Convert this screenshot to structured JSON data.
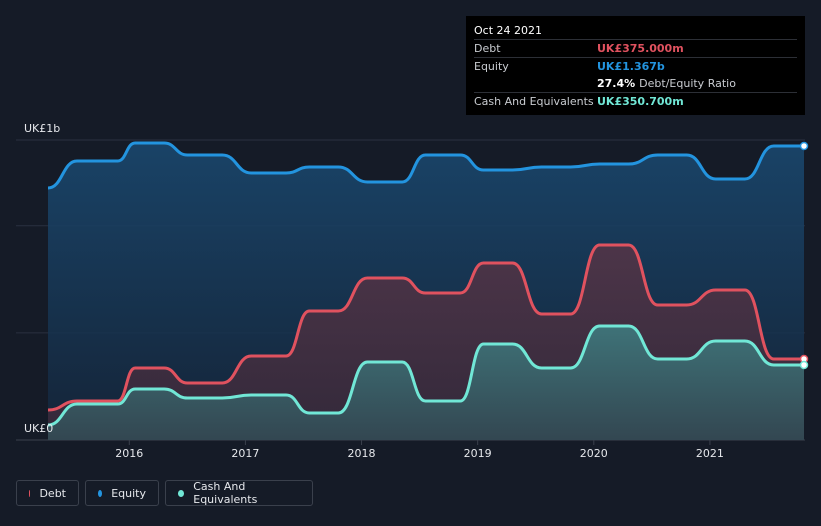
{
  "chart_data": {
    "type": "area",
    "x_years": [
      2015.3,
      2015.55,
      2015.7,
      2015.9,
      2016.05,
      2016.3,
      2016.5,
      2016.8,
      2017.05,
      2017.35,
      2017.55,
      2017.8,
      2018.05,
      2018.35,
      2018.55,
      2018.85,
      2019.05,
      2019.3,
      2019.55,
      2019.8,
      2020.05,
      2020.3,
      2020.55,
      2020.8,
      2021.05,
      2021.3,
      2021.55,
      2021.81
    ],
    "series": [
      {
        "name": "Debt",
        "color": "#e0525f",
        "values": [
          0.1,
          0.13,
          0.13,
          0.13,
          0.24,
          0.24,
          0.19,
          0.19,
          0.28,
          0.28,
          0.43,
          0.43,
          0.54,
          0.54,
          0.49,
          0.49,
          0.59,
          0.59,
          0.42,
          0.42,
          0.65,
          0.65,
          0.45,
          0.45,
          0.5,
          0.5,
          0.27,
          0.27
        ]
      },
      {
        "name": "Equity",
        "color": "#2394df",
        "values": [
          0.84,
          0.93,
          0.93,
          0.93,
          0.99,
          0.99,
          0.95,
          0.95,
          0.89,
          0.89,
          0.91,
          0.91,
          0.86,
          0.86,
          0.95,
          0.95,
          0.9,
          0.9,
          0.91,
          0.91,
          0.92,
          0.92,
          0.95,
          0.95,
          0.87,
          0.87,
          0.98,
          0.98
        ]
      },
      {
        "name": "Cash And Equivalents",
        "color": "#71e7d6",
        "values": [
          0.05,
          0.12,
          0.12,
          0.12,
          0.17,
          0.17,
          0.14,
          0.14,
          0.15,
          0.15,
          0.09,
          0.09,
          0.26,
          0.26,
          0.13,
          0.13,
          0.32,
          0.32,
          0.24,
          0.24,
          0.38,
          0.38,
          0.27,
          0.27,
          0.33,
          0.33,
          0.25,
          0.25
        ]
      }
    ],
    "xticks": [
      "2016",
      "2017",
      "2018",
      "2019",
      "2020",
      "2021"
    ],
    "xtick_years": [
      2016,
      2017,
      2018,
      2019,
      2020,
      2021
    ],
    "ytick_labels": [
      "UK£1b",
      "UK£0"
    ],
    "ylim": [
      0,
      1.0
    ],
    "xlim": [
      2015.3,
      2021.81
    ],
    "grid": true,
    "legend_position": "bottom-left"
  },
  "tooltip": {
    "date": "Oct 24 2021",
    "rows": [
      {
        "label": "Debt",
        "value": "UK£375.000m",
        "color": "#e0525f"
      },
      {
        "label": "Equity",
        "value": "UK£1.367b",
        "color": "#2394df"
      },
      {
        "label": "",
        "value": "27.4%",
        "suffix": "Debt/Equity Ratio",
        "color": "#ffffff"
      },
      {
        "label": "Cash And Equivalents",
        "value": "UK£350.700m",
        "color": "#71e7d6"
      }
    ]
  },
  "legend": [
    {
      "label": "Debt",
      "color": "#e0525f"
    },
    {
      "label": "Equity",
      "color": "#2394df"
    },
    {
      "label": "Cash And Equivalents",
      "color": "#71e7d6"
    }
  ]
}
